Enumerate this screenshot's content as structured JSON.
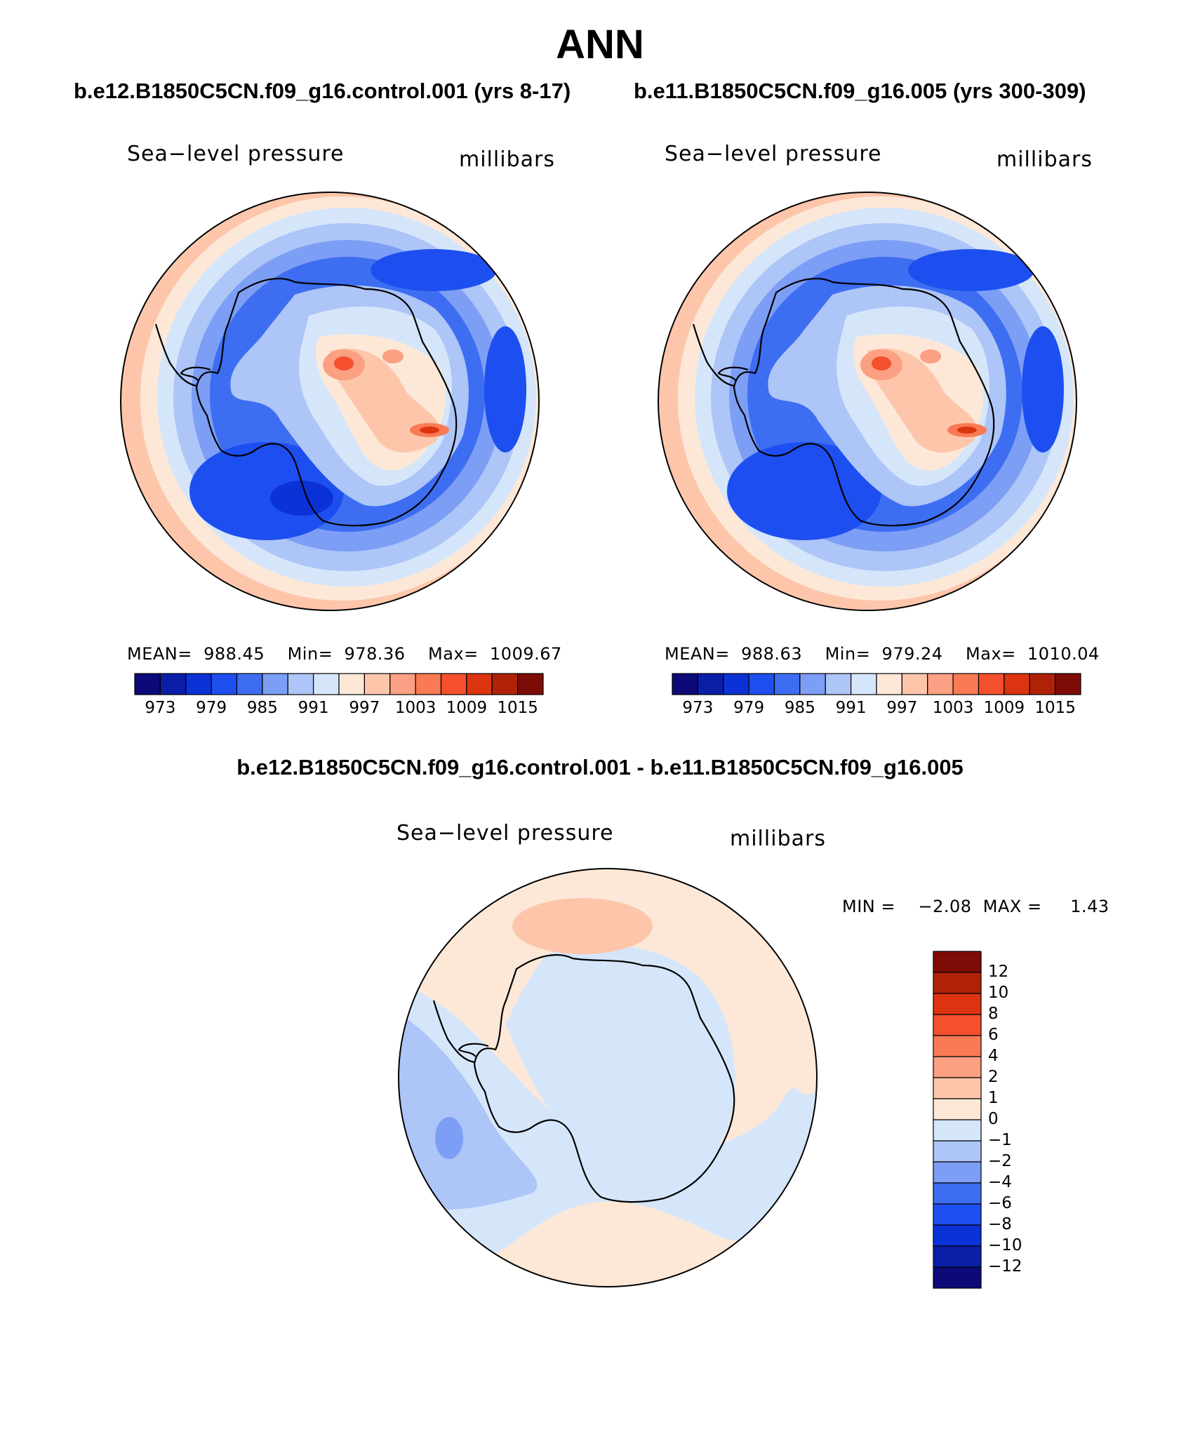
{
  "figure": {
    "title": "ANN",
    "left_case": "b.e12.B1850C5CN.f09_g16.control.001 (yrs 8-17)",
    "right_case": "b.e11.B1850C5CN.f09_g16.005 (yrs 300-309)",
    "diff_case": "b.e12.B1850C5CN.f09_g16.control.001 - b.e11.B1850C5CN.f09_g16.005"
  },
  "panels": [
    {
      "id": "control",
      "variable": "Sea−level pressure",
      "units": "millibars",
      "stats": "MEAN=  988.45    Min=  978.36    Max=  1009.67",
      "colorbar_ticks": [
        "973",
        "979",
        "985",
        "991",
        "997",
        "1003",
        "1009",
        "1015"
      ]
    },
    {
      "id": "experiment",
      "variable": "Sea−level pressure",
      "units": "millibars",
      "stats": "MEAN=  988.63    Min=  979.24    Max=  1010.04",
      "colorbar_ticks": [
        "973",
        "979",
        "985",
        "991",
        "997",
        "1003",
        "1009",
        "1015"
      ]
    }
  ],
  "difference": {
    "variable": "Sea−level pressure",
    "units": "millibars",
    "stats": "MIN =    −2.08  MAX =     1.43",
    "colorbar_ticks": [
      "12",
      "10",
      "8",
      "6",
      "4",
      "2",
      "1",
      "0",
      "−1",
      "−2",
      "−4",
      "−6",
      "−8",
      "−10",
      "−12"
    ]
  },
  "colors": {
    "slp_scale": [
      "#0c0a78",
      "#0a1ea8",
      "#0b32d6",
      "#1d4ff0",
      "#3d6ef2",
      "#7d9ef5",
      "#adc5f7",
      "#d5e6fa",
      "#fde8d8",
      "#fdc6ab",
      "#fba083",
      "#f97a55",
      "#f4502e",
      "#dc3410",
      "#b02208",
      "#7d0c06"
    ],
    "diff_scale": [
      "#7d0c06",
      "#b02208",
      "#dc3410",
      "#f4502e",
      "#f97a55",
      "#fba083",
      "#fdc6ab",
      "#fde8d8",
      "#d5e6fa",
      "#adc5f7",
      "#7d9ef5",
      "#3d6ef2",
      "#1d4ff0",
      "#0b32d6",
      "#0a1ea8",
      "#0c0a78"
    ],
    "coastline": "#000000"
  }
}
